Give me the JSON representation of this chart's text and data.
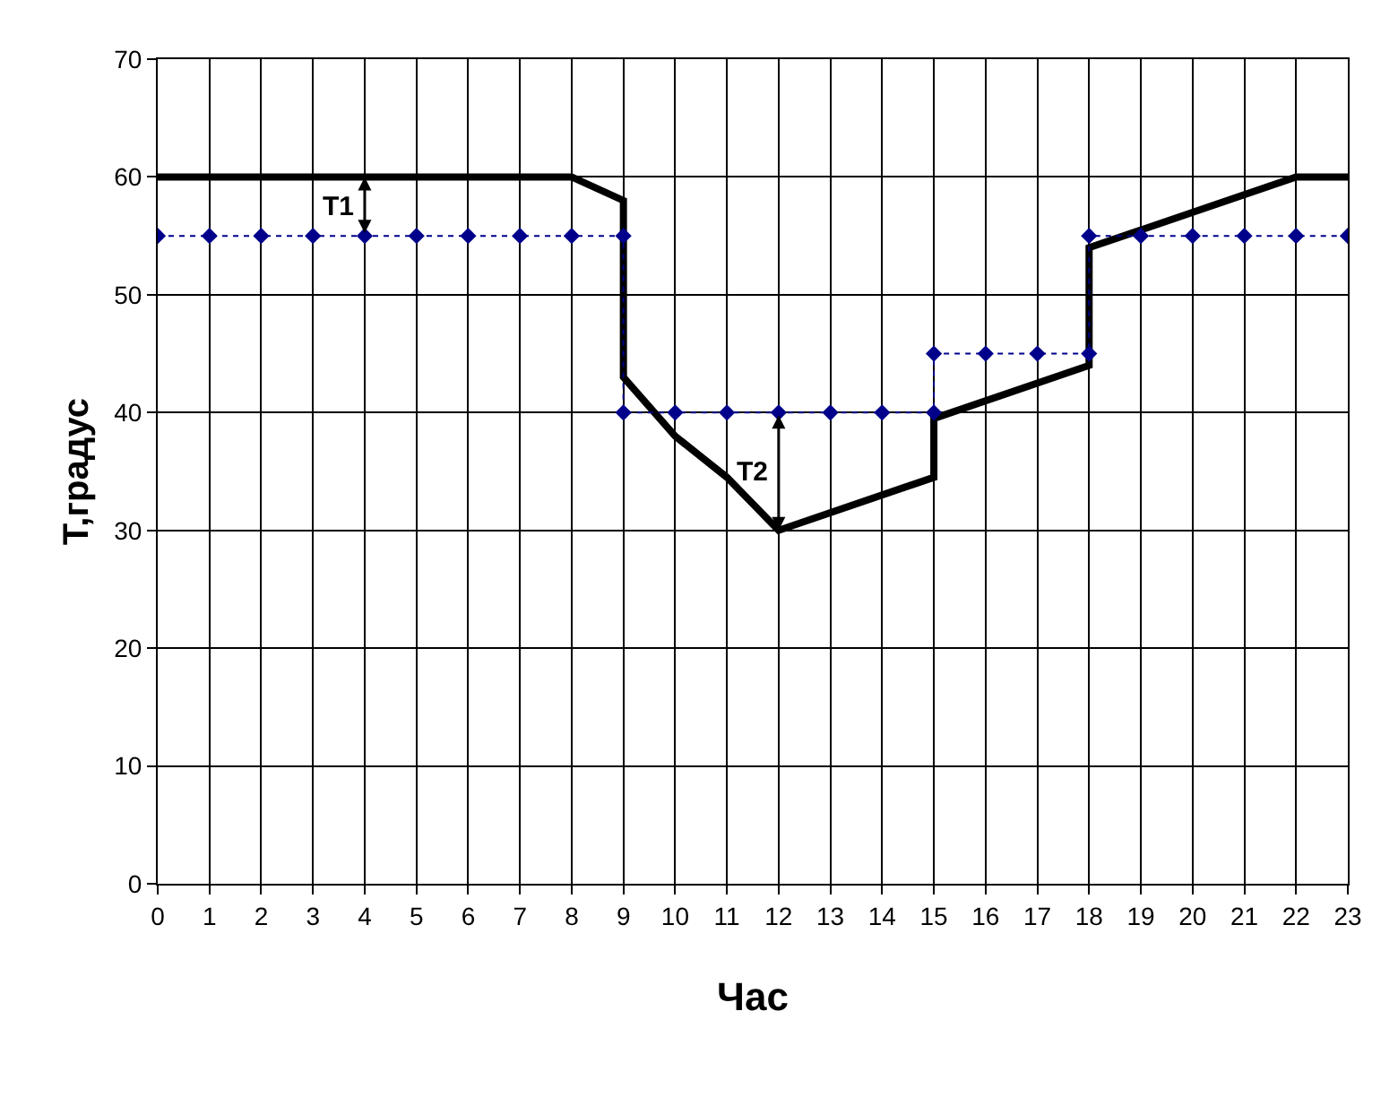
{
  "chart_data": {
    "type": "line",
    "xlabel": "Час",
    "ylabel": "Т,градус",
    "xlim": [
      0,
      23
    ],
    "xticks": [
      0,
      1,
      2,
      3,
      4,
      5,
      6,
      7,
      8,
      9,
      10,
      11,
      12,
      13,
      14,
      15,
      16,
      17,
      18,
      19,
      20,
      21,
      22,
      23
    ],
    "ylim": [
      0,
      70
    ],
    "yticks": [
      0,
      10,
      20,
      30,
      40,
      50,
      60,
      70
    ],
    "grid": true,
    "series": [
      {
        "color": "#000000",
        "marker": "none",
        "line_style": "solid",
        "x": [
          0,
          8,
          9,
          9,
          10,
          11,
          12,
          15,
          15,
          18,
          18,
          22,
          23
        ],
        "values": [
          60,
          60,
          58,
          43,
          38,
          34.5,
          30,
          34.5,
          39.5,
          44,
          54,
          60,
          60
        ]
      },
      {
        "color": "#00008b",
        "marker": "diamond",
        "line_style": "dotted",
        "x": [
          0,
          1,
          2,
          3,
          4,
          5,
          6,
          7,
          8,
          9,
          9,
          10,
          11,
          12,
          13,
          14,
          15,
          15,
          16,
          17,
          18,
          18,
          19,
          20,
          21,
          22,
          23
        ],
        "values": [
          55,
          55,
          55,
          55,
          55,
          55,
          55,
          55,
          55,
          55,
          40,
          40,
          40,
          40,
          40,
          40,
          40,
          45,
          45,
          45,
          45,
          55,
          55,
          55,
          55,
          55,
          55
        ]
      }
    ],
    "annotations": [
      {
        "text": "T1",
        "x": 4,
        "y": 55
      },
      {
        "text": "T2",
        "x": 12,
        "y": 40
      }
    ]
  }
}
